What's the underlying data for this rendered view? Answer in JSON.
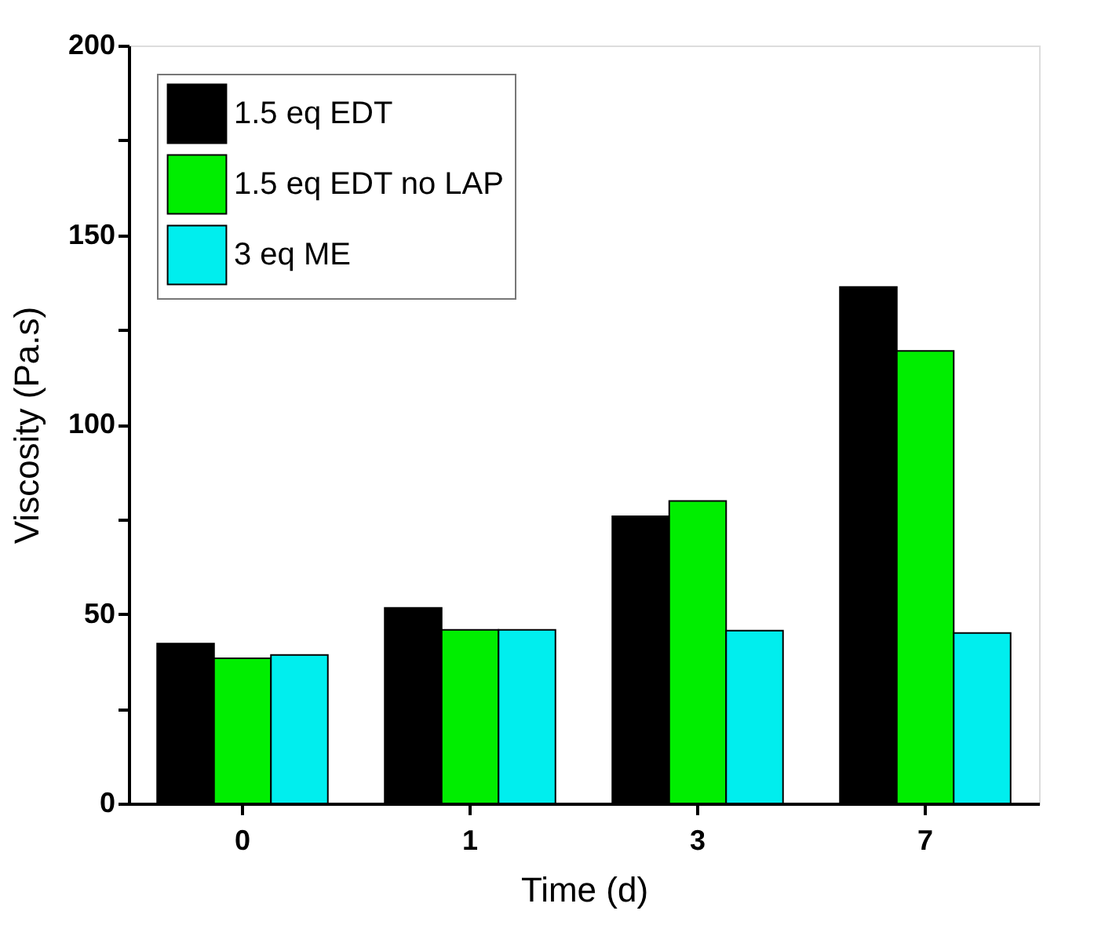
{
  "chart_data": {
    "type": "bar",
    "xlabel": "Time (d)",
    "ylabel": "Viscosity (Pa.s)",
    "categories": [
      "0",
      "1",
      "3",
      "7"
    ],
    "series": [
      {
        "name": "1.5 eq EDT",
        "color": "#000000",
        "values": [
          42.2,
          51.6,
          75.8,
          136.3
        ]
      },
      {
        "name": "1.5 eq EDT no LAP",
        "color": "#00ee00",
        "values": [
          38.3,
          45.8,
          79.8,
          119.4
        ]
      },
      {
        "name": "3 eq ME",
        "color": "#00eeee",
        "values": [
          39.2,
          45.8,
          45.6,
          45.0
        ]
      }
    ],
    "ylim": [
      0,
      200
    ],
    "yticks": [
      0,
      {
        "value": 25,
        "label": null
      },
      50,
      {
        "value": 75,
        "label": null
      },
      100,
      {
        "value": 125,
        "label": null
      },
      150,
      {
        "value": 175,
        "label": null
      },
      200
    ],
    "legend": "top left",
    "grid": false
  }
}
